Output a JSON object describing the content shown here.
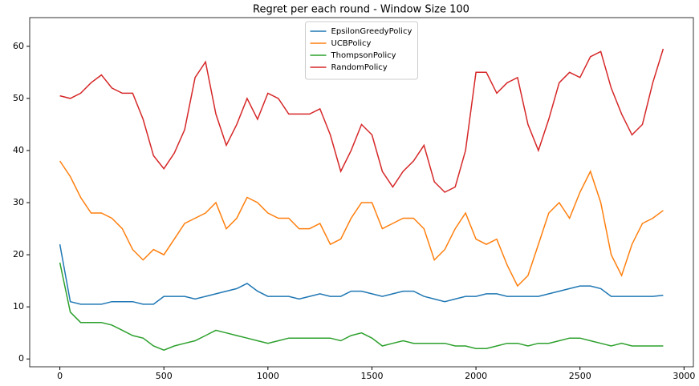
{
  "chart_data": {
    "type": "line",
    "title": "Regret per each round - Window Size 100",
    "x": [
      0,
      50,
      100,
      150,
      200,
      250,
      300,
      350,
      400,
      450,
      500,
      550,
      600,
      650,
      700,
      750,
      800,
      850,
      900,
      950,
      1000,
      1050,
      1100,
      1150,
      1200,
      1250,
      1300,
      1350,
      1400,
      1450,
      1500,
      1550,
      1600,
      1650,
      1700,
      1750,
      1800,
      1850,
      1900,
      1950,
      2000,
      2050,
      2100,
      2150,
      2200,
      2250,
      2300,
      2350,
      2400,
      2450,
      2500,
      2550,
      2600,
      2650,
      2700,
      2750,
      2800,
      2850,
      2900
    ],
    "series": [
      {
        "name": "EpsilonGreedyPolicy",
        "color": "#1f77b4",
        "values": [
          22,
          11,
          10.5,
          10.5,
          10.5,
          11,
          11,
          11,
          10.5,
          10.5,
          12,
          12,
          12,
          11.5,
          12,
          12.5,
          13,
          13.5,
          14.5,
          13,
          12,
          12,
          12,
          11.5,
          12,
          12.5,
          12,
          12,
          13,
          13,
          12.5,
          12,
          12.5,
          13,
          13,
          12,
          11.5,
          11,
          11.5,
          12,
          12,
          12.5,
          12.5,
          12,
          12,
          12,
          12,
          12.5,
          13,
          13.5,
          14,
          14,
          13.5,
          12,
          12,
          12,
          12,
          12,
          12.2
        ]
      },
      {
        "name": "UCBPolicy",
        "color": "#ff7f0e",
        "values": [
          38,
          35,
          31,
          28,
          28,
          27,
          25,
          21,
          19,
          21,
          20,
          23,
          26,
          27,
          28,
          30,
          25,
          27,
          31,
          30,
          28,
          27,
          27,
          25,
          25,
          26,
          22,
          23,
          27,
          30,
          30,
          25,
          26,
          27,
          27,
          25,
          19,
          21,
          25,
          28,
          23,
          22,
          23,
          18,
          14,
          16,
          22,
          28,
          30,
          27,
          32,
          36,
          30,
          20,
          16,
          22,
          26,
          27,
          28.5
        ]
      },
      {
        "name": "ThompsonPolicy",
        "color": "#2ca02c",
        "values": [
          18.5,
          9,
          7,
          7,
          7,
          6.5,
          5.5,
          4.5,
          4,
          2.5,
          1.7,
          2.5,
          3,
          3.5,
          4.5,
          5.5,
          5,
          4.5,
          4,
          3.5,
          3,
          3.5,
          4,
          4,
          4,
          4,
          4,
          3.5,
          4.5,
          5,
          4,
          2.5,
          3,
          3.5,
          3,
          3,
          3,
          3,
          2.5,
          2.5,
          2,
          2,
          2.5,
          3,
          3,
          2.5,
          3,
          3,
          3.5,
          4,
          4,
          3.5,
          3,
          2.5,
          3,
          2.5,
          2.5,
          2.5,
          2.5
        ]
      },
      {
        "name": "RandomPolicy",
        "color": "#d62728",
        "values": [
          50.5,
          50,
          51,
          53,
          54.5,
          52,
          51,
          51,
          46,
          39,
          36.5,
          39.5,
          44,
          54,
          57,
          47,
          41,
          45,
          50,
          46,
          51,
          50,
          47,
          47,
          47,
          48,
          43,
          36,
          40,
          45,
          43,
          36,
          33,
          36,
          38,
          41,
          34,
          32,
          33,
          40,
          55,
          55,
          51,
          53,
          54,
          45,
          40,
          46,
          53,
          55,
          54,
          58,
          59,
          52,
          47,
          43,
          45,
          53,
          59.5
        ]
      }
    ],
    "xlim": [
      -145,
      3045
    ],
    "xticks": [
      0,
      500,
      1000,
      1500,
      2000,
      2500,
      3000
    ],
    "ylim": [
      -1.5,
      65.5
    ],
    "yticks": [
      0,
      10,
      20,
      30,
      40,
      50,
      60
    ],
    "grid": false,
    "legend": "upper center"
  }
}
